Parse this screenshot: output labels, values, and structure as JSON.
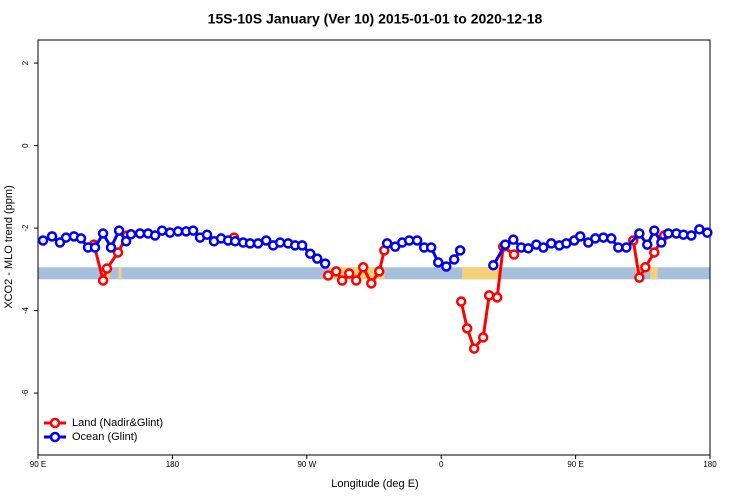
{
  "chart_data": {
    "type": "line",
    "title": "15S-10S January (Ver 10)   2015-01-01 to 2020-12-18",
    "x_label": "Longitude (deg E)",
    "y_label": "XCO2 - MLO trend (ppm)",
    "xlim": [
      90,
      540
    ],
    "xticks": [
      {
        "value": 90,
        "label": "90 E"
      },
      {
        "value": 180,
        "label": "180"
      },
      {
        "value": 270,
        "label": "90 W"
      },
      {
        "value": 360,
        "label": "0"
      },
      {
        "value": 450,
        "label": "90 E"
      },
      {
        "value": 540,
        "label": "180"
      }
    ],
    "ylim": [
      -7.5,
      2.56
    ],
    "yticks": [
      -6,
      -4,
      -2,
      0,
      2
    ],
    "band": {
      "yrange": [
        -3.24,
        -2.95
      ],
      "color": "#a5bfdd",
      "land_color": "#f5d27a",
      "land_spans": [
        [
          133,
          138
        ],
        [
          144,
          146
        ],
        [
          285,
          322
        ],
        [
          374,
          400
        ],
        [
          490,
          494
        ],
        [
          500,
          505
        ]
      ]
    },
    "legend": "bottom-left",
    "series": [
      {
        "name": "Land (Nadir&Glint)",
        "color": "#ff0000",
        "x": [
          127.5,
          133.6,
          136.2,
          143.6,
          149.6,
          null,
          221.3,
          null,
          284.3,
          289.7,
          293.7,
          298.4,
          303.1,
          307.8,
          313.2,
          318.5,
          321.9,
          null,
          373.4,
          377.4,
          382.1,
          388.1,
          392.1,
          397.5,
          401.5,
          408.8,
          null,
          488.6,
          492.7,
          496.7,
          502.7,
          509.3
        ],
        "values": [
          -2.4,
          -3.27,
          -2.98,
          -2.59,
          -2.18,
          null,
          -2.23,
          null,
          -3.15,
          -3.05,
          -3.27,
          -3.1,
          -3.27,
          -2.95,
          -3.34,
          -3.05,
          -2.54,
          null,
          -3.78,
          -4.43,
          -4.92,
          -4.65,
          -3.63,
          -3.68,
          -2.45,
          -2.64,
          null,
          -2.3,
          -3.2,
          -2.95,
          -2.59,
          -2.18
        ]
      },
      {
        "name": "Ocean (Glint)",
        "color": "#0000ee",
        "x": [
          93.4,
          99.4,
          104.7,
          108.8,
          114.1,
          118.8,
          123.5,
          128.2,
          133.6,
          138.9,
          144.3,
          149.0,
          152.3,
          158.3,
          163.7,
          168.4,
          173.1,
          178.4,
          183.8,
          189.2,
          193.9,
          198.5,
          203.2,
          207.9,
          212.6,
          217.3,
          222.0,
          227.4,
          232.0,
          237.4,
          242.8,
          247.5,
          252.1,
          257.5,
          262.2,
          266.9,
          272.3,
          277.0,
          282.3,
          null,
          323.8,
          329.2,
          333.9,
          338.6,
          343.9,
          348.6,
          353.3,
          358.0,
          363.4,
          368.7,
          372.7,
          null,
          394.9,
          402.9,
          408.3,
          413.6,
          418.3,
          423.7,
          428.4,
          433.7,
          439.1,
          443.8,
          449.1,
          453.1,
          458.5,
          463.2,
          468.6,
          473.9,
          478.6,
          484.0,
          492.7,
          498.0,
          502.7,
          507.4,
          512.1,
          517.5,
          522.2,
          527.5,
          532.9,
          538.2
        ],
        "values": [
          -2.3,
          -2.2,
          -2.35,
          -2.23,
          -2.2,
          -2.25,
          -2.47,
          -2.47,
          -2.13,
          -2.47,
          -2.06,
          -2.32,
          -2.15,
          -2.13,
          -2.13,
          -2.18,
          -2.06,
          -2.11,
          -2.08,
          -2.08,
          -2.06,
          -2.23,
          -2.16,
          -2.32,
          -2.25,
          -2.3,
          -2.32,
          -2.35,
          -2.37,
          -2.37,
          -2.3,
          -2.42,
          -2.35,
          -2.37,
          -2.42,
          -2.42,
          -2.62,
          -2.74,
          -2.86,
          null,
          -2.37,
          -2.45,
          -2.35,
          -2.3,
          -2.3,
          -2.47,
          -2.47,
          -2.83,
          -2.93,
          -2.76,
          -2.54,
          null,
          -2.9,
          -2.4,
          -2.28,
          -2.47,
          -2.49,
          -2.4,
          -2.47,
          -2.37,
          -2.42,
          -2.37,
          -2.3,
          -2.2,
          -2.35,
          -2.25,
          -2.23,
          -2.25,
          -2.47,
          -2.47,
          -2.13,
          -2.4,
          -2.06,
          -2.35,
          -2.13,
          -2.13,
          -2.16,
          -2.18,
          -2.03,
          -2.11
        ]
      }
    ]
  }
}
